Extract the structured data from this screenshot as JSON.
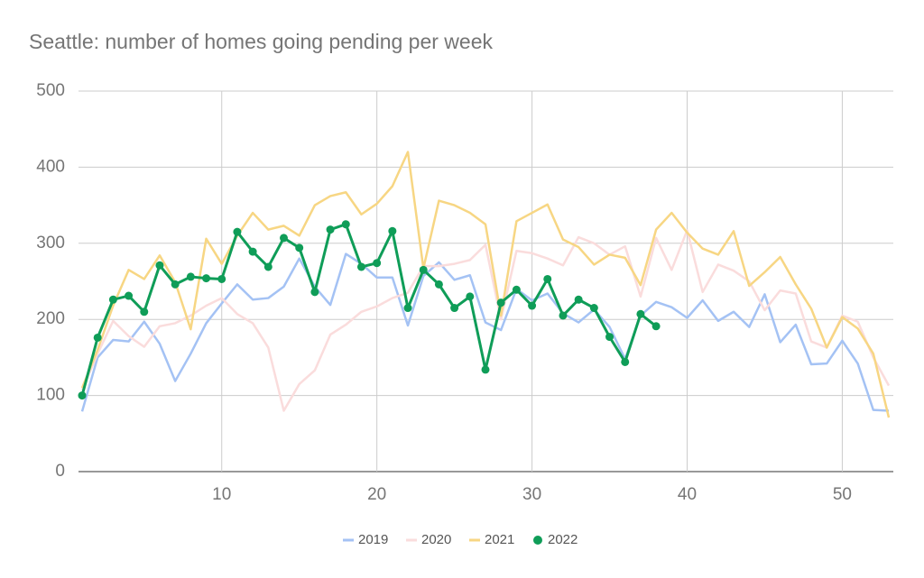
{
  "chart_data": {
    "type": "line",
    "title": "Seattle: number of homes going pending per week",
    "x": [
      1,
      2,
      3,
      4,
      5,
      6,
      7,
      8,
      9,
      10,
      11,
      12,
      13,
      14,
      15,
      16,
      17,
      18,
      19,
      20,
      21,
      22,
      23,
      24,
      25,
      26,
      27,
      28,
      29,
      30,
      31,
      32,
      33,
      34,
      35,
      36,
      37,
      38,
      39,
      40,
      41,
      42,
      43,
      44,
      45,
      46,
      47,
      48,
      49,
      50,
      51,
      52,
      53
    ],
    "xlim": [
      1,
      53
    ],
    "xticks": [
      10,
      20,
      30,
      40,
      50
    ],
    "ylim": [
      0,
      500
    ],
    "yticks": [
      0,
      100,
      200,
      300,
      400,
      500
    ],
    "grid": true,
    "legend": "bottom",
    "series": [
      {
        "name": "2019",
        "color": "#a4c2f4",
        "marker": false,
        "values": [
          79,
          150,
          173,
          171,
          197,
          168,
          119,
          155,
          195,
          221,
          246,
          226,
          228,
          243,
          280,
          243,
          219,
          286,
          273,
          255,
          255,
          192,
          257,
          275,
          252,
          258,
          196,
          186,
          240,
          225,
          234,
          208,
          196,
          213,
          190,
          148,
          205,
          223,
          216,
          202,
          225,
          198,
          210,
          190,
          233,
          170,
          193,
          141,
          142,
          172,
          142,
          81,
          80
        ]
      },
      {
        "name": "2020",
        "color": "#fadcdc",
        "marker": false,
        "values": [
          107,
          155,
          198,
          178,
          164,
          191,
          195,
          205,
          218,
          228,
          207,
          195,
          163,
          80,
          115,
          133,
          180,
          193,
          210,
          217,
          228,
          235,
          270,
          270,
          273,
          278,
          298,
          200,
          290,
          287,
          280,
          271,
          308,
          300,
          285,
          296,
          230,
          307,
          265,
          317,
          236,
          272,
          264,
          250,
          212,
          238,
          234,
          171,
          163,
          205,
          197,
          150,
          113
        ]
      },
      {
        "name": "2021",
        "color": "#f7d683",
        "marker": false,
        "values": [
          110,
          160,
          218,
          265,
          253,
          284,
          249,
          187,
          306,
          273,
          310,
          340,
          318,
          323,
          310,
          350,
          362,
          367,
          338,
          352,
          375,
          420,
          267,
          356,
          350,
          340,
          325,
          205,
          329,
          340,
          351,
          305,
          295,
          272,
          285,
          281,
          245,
          318,
          340,
          314,
          293,
          285,
          316,
          244,
          262,
          282,
          246,
          214,
          163,
          203,
          188,
          155,
          71
        ]
      },
      {
        "name": "2022",
        "color": "#0f9d58",
        "marker": true,
        "values": [
          100,
          176,
          226,
          231,
          210,
          271,
          246,
          256,
          254,
          253,
          315,
          289,
          269,
          307,
          294,
          236,
          318,
          325,
          269,
          274,
          316,
          215,
          265,
          246,
          215,
          230,
          134,
          222,
          239,
          218,
          253,
          205,
          226,
          215,
          177,
          144,
          207,
          191,
          null,
          null,
          null,
          null,
          null,
          null,
          null,
          null,
          null,
          null,
          null,
          null,
          null,
          null,
          null
        ]
      }
    ]
  }
}
